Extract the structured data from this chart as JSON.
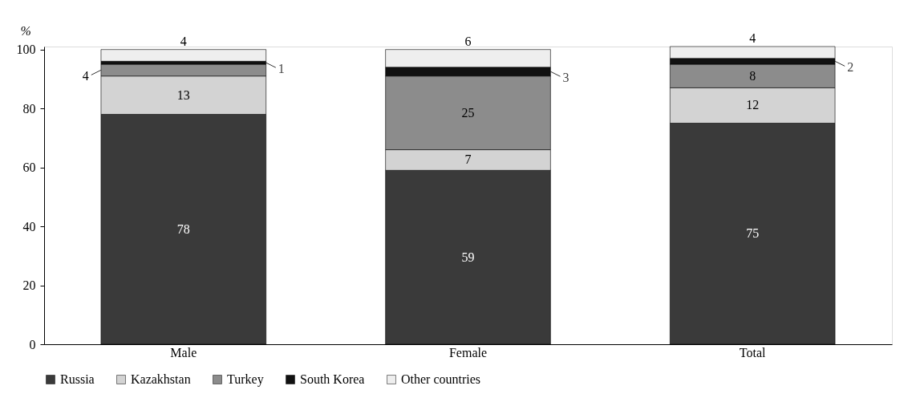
{
  "chart_data": {
    "type": "bar",
    "stacked": true,
    "ylabel": "%",
    "categories": [
      "Male",
      "Female",
      "Total"
    ],
    "series": [
      {
        "name": "Russia",
        "color": "#3a3a3a",
        "values": [
          78,
          59,
          75
        ]
      },
      {
        "name": "Kazakhstan",
        "color": "#d3d3d3",
        "values": [
          13,
          7,
          12
        ]
      },
      {
        "name": "Turkey",
        "color": "#8c8c8c",
        "values": [
          4,
          25,
          8
        ]
      },
      {
        "name": "South Korea",
        "color": "#111111",
        "values": [
          1,
          3,
          2
        ]
      },
      {
        "name": "Other countries",
        "color": "#eeeeee",
        "values": [
          4,
          6,
          4
        ]
      }
    ],
    "ylim": [
      0,
      101
    ],
    "yticks": [
      0,
      20,
      40,
      60,
      80,
      100
    ],
    "grid": false,
    "legend": "bottom",
    "data_labels": true
  }
}
